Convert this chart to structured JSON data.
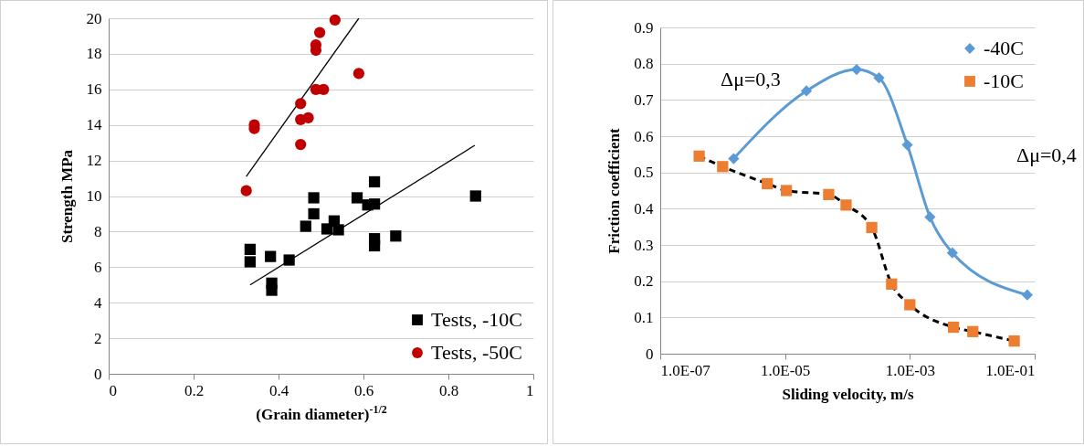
{
  "chart_data": [
    {
      "type": "scatter",
      "xlabel": "(Grain diameter)$^{-1/2}$",
      "ylabel": "Strength MPa",
      "xlim": [
        0,
        1
      ],
      "xticks": [
        0,
        0.2,
        0.4,
        0.6,
        0.8,
        1
      ],
      "ylim": [
        0,
        20
      ],
      "yticks": [
        0,
        2,
        4,
        6,
        8,
        10,
        12,
        14,
        16,
        18,
        20
      ],
      "grid": "y",
      "legend": "bottom right",
      "series": [
        {
          "name": "Tests, -10C",
          "color": "#000000",
          "marker": "square",
          "x": [
            0.626,
            0.483,
            0.585,
            0.864,
            0.61,
            0.626,
            0.483,
            0.464,
            0.531,
            0.514,
            0.541,
            0.626,
            0.626,
            0.676,
            0.333,
            0.333,
            0.381,
            0.425,
            0.384,
            0.384
          ],
          "values": [
            10.8,
            9.9,
            9.9,
            10.0,
            9.5,
            9.55,
            9.0,
            8.3,
            8.6,
            8.15,
            8.1,
            7.6,
            7.2,
            7.75,
            7.0,
            6.3,
            6.6,
            6.4,
            5.1,
            4.7
          ]
        },
        {
          "name": "Tests, -50C",
          "color": "#c00000",
          "marker": "circle",
          "x": [
            0.533,
            0.497,
            0.488,
            0.488,
            0.589,
            0.488,
            0.506,
            0.452,
            0.47,
            0.452,
            0.343,
            0.343,
            0.452,
            0.324
          ],
          "values": [
            19.9,
            19.2,
            18.5,
            18.2,
            16.9,
            16.0,
            16.0,
            15.2,
            14.4,
            14.3,
            14.0,
            13.8,
            12.9,
            10.3
          ]
        },
        {
          "type": "line",
          "color": "#000000",
          "x": [
            0.333,
            0.862
          ],
          "values": [
            5.0,
            12.85
          ]
        },
        {
          "type": "line",
          "color": "#000000",
          "x": [
            0.324,
            0.589
          ],
          "values": [
            11.1,
            20.0
          ]
        }
      ]
    },
    {
      "type": "line",
      "xlabel": "Sliding velocity, m/s",
      "ylabel": "Friction coefficient",
      "log": "x",
      "xlim": [
        1e-07,
        0.1
      ],
      "xticks": [
        {
          "value": 1e-07,
          "label": "1.0E-07"
        },
        {
          "value": 1e-05,
          "label": "1.0E-05"
        },
        {
          "value": 0.001,
          "label": "1.0E-03"
        },
        {
          "value": 0.1,
          "label": "1.0E-01"
        }
      ],
      "ylim": [
        0,
        0.9
      ],
      "yticks": [
        0,
        0.1,
        0.2,
        0.3,
        0.4,
        0.5,
        0.6,
        0.7,
        0.8,
        0.9
      ],
      "grid": "y",
      "legend": "top right",
      "annotations": [
        "Δμ=0,3",
        "Δμ=0,4"
      ],
      "series": [
        {
          "name": "-40C",
          "color": "#5b9bd5",
          "marker": "diamond",
          "x": [
            1.5e-06,
            2.2e-05,
            0.00014,
            0.00032,
            0.00091,
            0.0021,
            0.0048,
            0.076
          ],
          "values": [
            0.538,
            0.725,
            0.784,
            0.761,
            0.576,
            0.377,
            0.278,
            0.162
          ]
        },
        {
          "type": "line",
          "color": "#000000",
          "line_style": "dashed",
          "marker": "none",
          "x": [
            4.2e-07,
            1e-06,
            5.2e-06,
            1.05e-05,
            5e-05,
            9.5e-05,
            0.000245,
            0.00051,
            0.001,
            0.005,
            0.0102,
            0.047
          ],
          "values": [
            0.545,
            0.516,
            0.469,
            0.45,
            0.439,
            0.41,
            0.348,
            0.192,
            0.135,
            0.073,
            0.061,
            0.035
          ]
        },
        {
          "name": "-10C",
          "type": "scatter",
          "color": "#ed7d31",
          "marker": "square",
          "x": [
            4.2e-07,
            1e-06,
            5.2e-06,
            1.05e-05,
            5e-05,
            9.5e-05,
            0.000245,
            0.00051,
            0.001,
            0.005,
            0.0102,
            0.047
          ],
          "values": [
            0.545,
            0.516,
            0.469,
            0.45,
            0.439,
            0.41,
            0.348,
            0.192,
            0.135,
            0.073,
            0.061,
            0.035
          ]
        }
      ]
    }
  ]
}
